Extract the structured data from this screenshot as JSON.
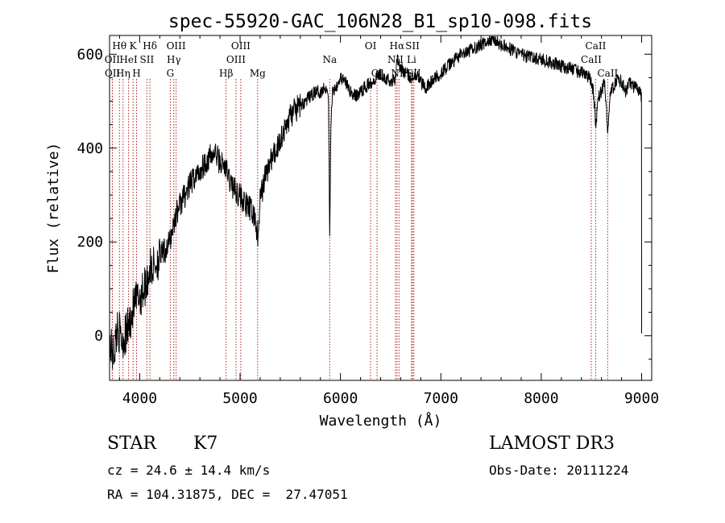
{
  "chart_data": {
    "type": "line",
    "title": "spec-55920-GAC_106N28_B1_sp10-098.fits",
    "xlabel": "Wavelength (Å)",
    "ylabel": "Flux (relative)",
    "xlim": [
      3700,
      9100
    ],
    "ylim": [
      -95,
      640
    ],
    "xticks": [
      4000,
      5000,
      6000,
      7000,
      8000,
      9000
    ],
    "yticks": [
      0,
      200,
      400,
      600
    ],
    "series": [
      {
        "name": "flux",
        "x": [
          3700,
          3740,
          3780,
          3820,
          3860,
          3900,
          3940,
          3980,
          4020,
          4060,
          4100,
          4150,
          4200,
          4250,
          4300,
          4350,
          4400,
          4450,
          4500,
          4550,
          4600,
          4650,
          4700,
          4750,
          4800,
          4850,
          4900,
          4950,
          5000,
          5050,
          5100,
          5150,
          5180,
          5200,
          5250,
          5300,
          5350,
          5400,
          5450,
          5500,
          5550,
          5600,
          5650,
          5700,
          5750,
          5800,
          5850,
          5880,
          5893,
          5905,
          5920,
          5950,
          6000,
          6050,
          6100,
          6150,
          6200,
          6250,
          6300,
          6350,
          6400,
          6450,
          6500,
          6550,
          6563,
          6580,
          6600,
          6650,
          6700,
          6750,
          6800,
          6850,
          6900,
          6950,
          7000,
          7050,
          7100,
          7150,
          7200,
          7250,
          7300,
          7350,
          7400,
          7450,
          7500,
          7550,
          7600,
          7650,
          7700,
          7750,
          7800,
          7850,
          7900,
          7950,
          8000,
          8050,
          8100,
          8150,
          8200,
          8250,
          8300,
          8350,
          8400,
          8450,
          8498,
          8520,
          8542,
          8570,
          8600,
          8630,
          8662,
          8690,
          8720,
          8760,
          8800,
          8840,
          8880,
          8920,
          8960,
          9000
        ],
        "y": [
          -20,
          -40,
          20,
          -10,
          0,
          30,
          60,
          80,
          90,
          110,
          140,
          150,
          170,
          180,
          200,
          250,
          280,
          300,
          320,
          340,
          350,
          370,
          380,
          390,
          370,
          360,
          330,
          310,
          300,
          280,
          270,
          250,
          200,
          290,
          340,
          370,
          390,
          420,
          440,
          470,
          480,
          490,
          500,
          510,
          520,
          520,
          530,
          520,
          210,
          450,
          520,
          530,
          550,
          540,
          520,
          510,
          520,
          530,
          540,
          550,
          560,
          550,
          540,
          550,
          600,
          580,
          570,
          560,
          550,
          560,
          540,
          530,
          540,
          550,
          560,
          570,
          580,
          590,
          600,
          600,
          610,
          615,
          620,
          625,
          630,
          630,
          620,
          615,
          610,
          605,
          600,
          595,
          595,
          590,
          590,
          585,
          580,
          580,
          575,
          570,
          570,
          565,
          560,
          560,
          540,
          520,
          450,
          510,
          520,
          540,
          440,
          520,
          530,
          550,
          540,
          520,
          540,
          530,
          525,
          510
        ]
      }
    ],
    "line_markers": [
      {
        "label": "Hθ",
        "wl": 3798,
        "row": 0
      },
      {
        "label": "OII",
        "wl": 3727,
        "row": 1
      },
      {
        "label": "OII",
        "wl": 3729,
        "row": 2
      },
      {
        "label": "Hη",
        "wl": 3835,
        "row": 2
      },
      {
        "label": "HeI",
        "wl": 3889,
        "row": 1
      },
      {
        "label": "K",
        "wl": 3934,
        "row": 0
      },
      {
        "label": "H",
        "wl": 3969,
        "row": 2
      },
      {
        "label": "SII",
        "wl": 4072,
        "row": 1
      },
      {
        "label": "Hδ",
        "wl": 4102,
        "row": 0
      },
      {
        "label": "OIII",
        "wl": 4363,
        "row": 0
      },
      {
        "label": "Hγ",
        "wl": 4340,
        "row": 1
      },
      {
        "label": "G",
        "wl": 4305,
        "row": 2
      },
      {
        "label": "Hβ",
        "wl": 4861,
        "row": 2
      },
      {
        "label": "OIII",
        "wl": 5007,
        "row": 0
      },
      {
        "label": "OIII",
        "wl": 4959,
        "row": 1
      },
      {
        "label": "Mg",
        "wl": 5175,
        "row": 2
      },
      {
        "label": "Na",
        "wl": 5893,
        "row": 1
      },
      {
        "label": "OI",
        "wl": 6300,
        "row": 0
      },
      {
        "label": "OI",
        "wl": 6364,
        "row": 2
      },
      {
        "label": "Hα",
        "wl": 6563,
        "row": 0
      },
      {
        "label": "NII",
        "wl": 6548,
        "row": 1
      },
      {
        "label": "NII",
        "wl": 6583,
        "row": 2
      },
      {
        "label": "SII",
        "wl": 6717,
        "row": 0
      },
      {
        "label": "Li",
        "wl": 6708,
        "row": 1
      },
      {
        "label": "SII",
        "wl": 6731,
        "row": 2
      },
      {
        "label": "CaII",
        "wl": 8542,
        "row": 0
      },
      {
        "label": "CaII",
        "wl": 8498,
        "row": 1
      },
      {
        "label": "CaII",
        "wl": 8662,
        "row": 2
      }
    ]
  },
  "info": {
    "object_class": "STAR",
    "subclass": "K7",
    "survey": "LAMOST DR3",
    "redshift_line": "cz = 24.6 ± 14.4 km/s",
    "obs_date_line": "Obs-Date: 20111224",
    "coords_line": "RA = 104.31875, DEC =  27.47051"
  },
  "colors": {
    "line_marker": "#b22222",
    "spectrum": "#000000"
  }
}
